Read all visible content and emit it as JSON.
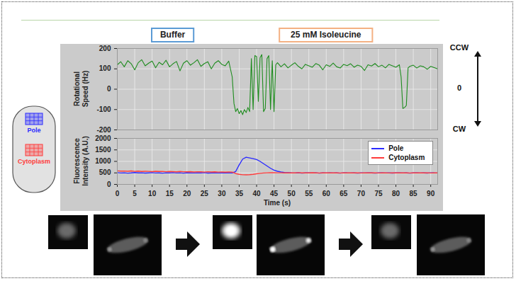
{
  "chart_data": [
    {
      "type": "line",
      "ylabel": "Rotational Speed (Hz)",
      "color": "#1e8c1e",
      "x": [
        0,
        1,
        2,
        3,
        4,
        5,
        6,
        7,
        8,
        9,
        10,
        11,
        12,
        13,
        14,
        15,
        16,
        17,
        18,
        19,
        20,
        21,
        22,
        23,
        24,
        25,
        26,
        27,
        28,
        29,
        30,
        31,
        32,
        33,
        33.5,
        34,
        34.5,
        35,
        35.5,
        36,
        36.5,
        37,
        37.5,
        38,
        38.5,
        39,
        39.5,
        40,
        40.5,
        41,
        41.5,
        42,
        42.5,
        43,
        43.5,
        44,
        44.5,
        45,
        45.5,
        46,
        47,
        48,
        49,
        50,
        51,
        52,
        53,
        54,
        55,
        56,
        57,
        58,
        59,
        60,
        61,
        62,
        63,
        64,
        65,
        66,
        67,
        68,
        69,
        70,
        71,
        72,
        73,
        74,
        75,
        76,
        77,
        78,
        79,
        80,
        81,
        81.5,
        82,
        82.5,
        83,
        83.5,
        84,
        85,
        86,
        87,
        88,
        89,
        90,
        91,
        92
      ],
      "values": [
        120,
        135,
        110,
        140,
        125,
        95,
        130,
        145,
        115,
        128,
        138,
        105,
        132,
        120,
        142,
        110,
        125,
        136,
        90,
        128,
        140,
        118,
        130,
        145,
        112,
        126,
        135,
        100,
        128,
        140,
        122,
        115,
        138,
        60,
        -70,
        -110,
        -95,
        -120,
        -105,
        -125,
        -100,
        -115,
        -90,
        -110,
        150,
        -100,
        165,
        160,
        -60,
        155,
        170,
        -110,
        -95,
        150,
        165,
        -100,
        140,
        -110,
        120,
        130,
        110,
        125,
        105,
        118,
        130,
        112,
        100,
        122,
        115,
        108,
        126,
        118,
        95,
        120,
        112,
        128,
        110,
        104,
        122,
        116,
        125,
        108,
        118,
        112,
        92,
        120,
        114,
        126,
        110,
        118,
        105,
        122,
        115,
        108,
        120,
        60,
        -95,
        -90,
        -80,
        105,
        112,
        118,
        104,
        115,
        110,
        98,
        112,
        106,
        100
      ],
      "xlim": [
        0,
        92
      ],
      "xticks": [
        0,
        5,
        10,
        15,
        20,
        25,
        30,
        35,
        40,
        45,
        50,
        55,
        60,
        65,
        70,
        75,
        80,
        85,
        90
      ],
      "ylim": [
        -200,
        200
      ],
      "yticks": [
        -200,
        -100,
        0,
        100,
        200
      ],
      "tick_labels": "y",
      "grid": true,
      "annotations": [
        {
          "text": "Buffer",
          "x": 16
        },
        {
          "text": "25 mM Isoleucine",
          "x": 60
        }
      ],
      "y_side_labels": [
        {
          "text": "CCW",
          "y": 200
        },
        {
          "text": "0",
          "y": 0
        },
        {
          "text": "CW",
          "y": -200
        }
      ]
    },
    {
      "type": "line",
      "xlabel": "Time (s)",
      "ylabel": "Fluorescence Intensity (A.U.)",
      "x": [
        0,
        1,
        2,
        3,
        4,
        5,
        6,
        7,
        8,
        9,
        10,
        11,
        12,
        13,
        14,
        15,
        16,
        17,
        18,
        19,
        20,
        21,
        22,
        23,
        24,
        25,
        26,
        27,
        28,
        29,
        30,
        31,
        32,
        33,
        34,
        35,
        36,
        37,
        38,
        39,
        40,
        41,
        42,
        43,
        44,
        45,
        46,
        47,
        48,
        49,
        50,
        51,
        52,
        53,
        54,
        55,
        56,
        57,
        58,
        59,
        60,
        61,
        62,
        63,
        64,
        65,
        66,
        67,
        68,
        69,
        70,
        71,
        72,
        73,
        74,
        75,
        76,
        77,
        78,
        79,
        80,
        81,
        82,
        83,
        84,
        85,
        86,
        87,
        88,
        89,
        90,
        91,
        92
      ],
      "series": [
        {
          "name": "Pole",
          "color": "#2b2bff",
          "values": [
            510,
            495,
            505,
            490,
            500,
            515,
            498,
            505,
            492,
            500,
            510,
            495,
            502,
            488,
            505,
            500,
            512,
            497,
            503,
            490,
            508,
            500,
            495,
            505,
            498,
            510,
            492,
            500,
            505,
            495,
            502,
            498,
            505,
            500,
            560,
            850,
            1100,
            1180,
            1150,
            1120,
            1080,
            1000,
            900,
            800,
            700,
            620,
            570,
            540,
            520,
            510,
            500,
            495,
            505,
            490,
            498,
            502,
            495,
            505,
            488,
            500,
            497,
            503,
            495,
            500,
            490,
            505,
            498,
            495,
            502,
            488,
            500,
            495,
            505,
            498,
            490,
            500,
            503,
            495,
            500,
            492,
            498,
            505,
            495,
            500,
            490,
            498,
            502,
            495,
            500,
            493,
            505,
            498,
            495
          ]
        },
        {
          "name": "Cytoplasm",
          "color": "#ff3b3b",
          "values": [
            590,
            575,
            580,
            570,
            585,
            565,
            575,
            560,
            570,
            565,
            555,
            570,
            560,
            565,
            550,
            560,
            555,
            545,
            560,
            550,
            545,
            555,
            540,
            550,
            545,
            535,
            550,
            540,
            545,
            535,
            540,
            530,
            540,
            535,
            470,
            440,
            420,
            415,
            425,
            440,
            460,
            480,
            495,
            505,
            510,
            510,
            505,
            505,
            500,
            500,
            505,
            500,
            510,
            498,
            505,
            502,
            508,
            500,
            495,
            505,
            502,
            498,
            505,
            500,
            495,
            503,
            500,
            498,
            505,
            500,
            495,
            502,
            498,
            505,
            500,
            497,
            503,
            500,
            495,
            502,
            500,
            505,
            498,
            500,
            495,
            502,
            500,
            498,
            505,
            500,
            497,
            502,
            500
          ]
        }
      ],
      "xlim": [
        0,
        92
      ],
      "xticks": [
        0,
        5,
        10,
        15,
        20,
        25,
        30,
        35,
        40,
        45,
        50,
        55,
        60,
        65,
        70,
        75,
        80,
        85,
        90
      ],
      "ylim": [
        0,
        2000
      ],
      "yticks": [
        0,
        500,
        1000,
        1500,
        2000
      ],
      "legend": "upper right",
      "grid": true
    }
  ],
  "diagram": {
    "labels": [
      {
        "text": "Pole",
        "color": "#2b2bff"
      },
      {
        "text": "Cytoplasm",
        "color": "#ff3b3b"
      }
    ]
  }
}
